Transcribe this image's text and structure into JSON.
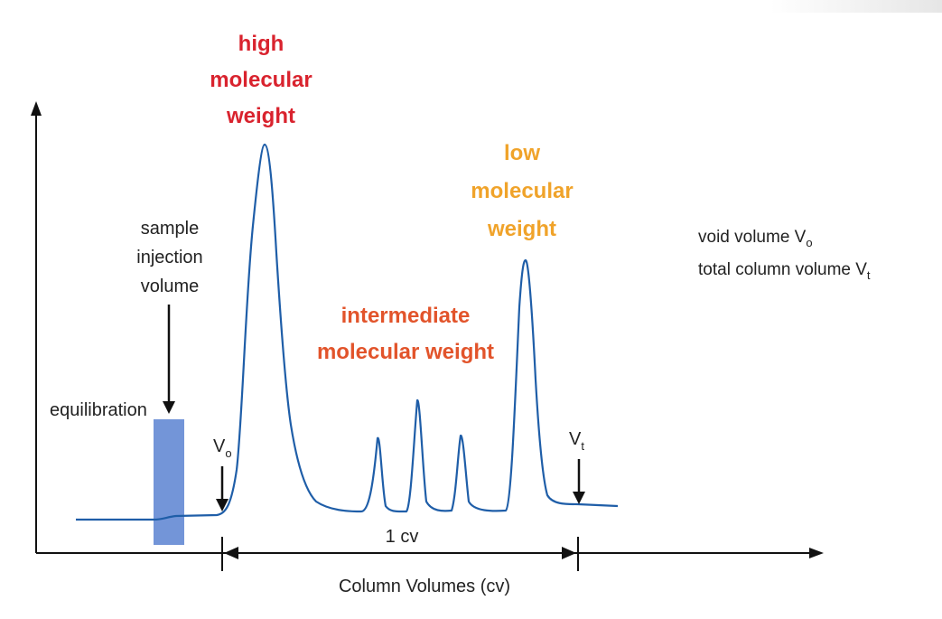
{
  "labels": {
    "high_molecular_weight": [
      "high",
      "molecular",
      "weight"
    ],
    "low_molecular_weight": [
      "low",
      "molecular",
      "weight"
    ],
    "intermediate_molecular_weight": [
      "intermediate",
      "molecular weight"
    ],
    "sample_injection_volume": [
      "sample",
      "injection",
      "volume"
    ],
    "equilibration": "equilibration",
    "void_marker": "V",
    "void_marker_sub": "o",
    "total_marker": "V",
    "total_marker_sub": "t",
    "one_cv": "1 cv",
    "x_axis_label": "Column Volumes (cv)"
  },
  "legend": {
    "void_volume_text": "void volume V",
    "void_volume_sub": "o",
    "total_volume_text": "total column volume V",
    "total_volume_sub": "t"
  },
  "colors": {
    "high": "#d9232e",
    "intermediate": "#e2542b",
    "low": "#f0a32a",
    "trace": "#1f5ea8",
    "injection": "#6b8fd6",
    "axis": "#111111"
  }
}
